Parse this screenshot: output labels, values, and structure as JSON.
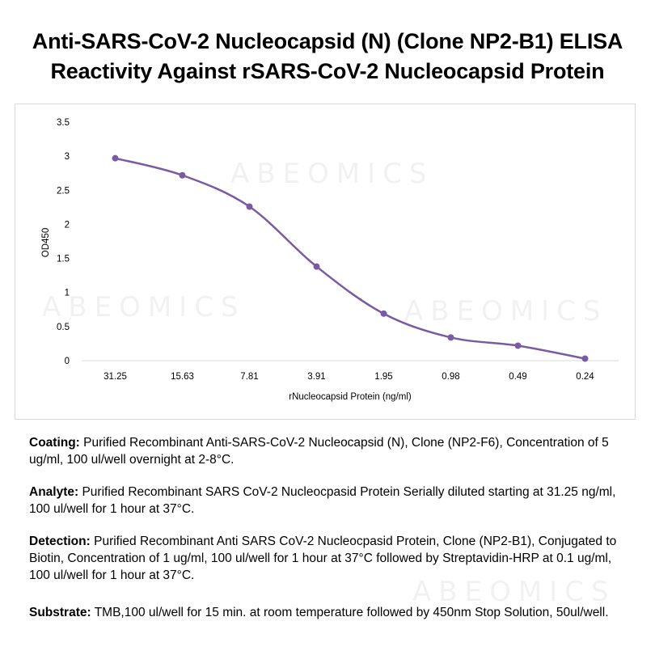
{
  "chart_data": {
    "type": "line",
    "title": "Anti-SARS-CoV-2 Nucleocapsid (N) (Clone NP2-B1) ELISA",
    "subtitle": "Reactivity Against rSARS-CoV-2 Nucleocapsid Protein",
    "xlabel": "rNucleocapsid Protein (ng/ml)",
    "ylabel": "OD450",
    "categories": [
      "31.25",
      "15.63",
      "7.81",
      "3.91",
      "1.95",
      "0.98",
      "0.49",
      "0.24"
    ],
    "series": [
      {
        "name": "OD450",
        "values": [
          2.97,
          2.72,
          2.26,
          1.38,
          0.69,
          0.34,
          0.22,
          0.03
        ]
      }
    ],
    "yticks": [
      "0",
      "0.5",
      "1",
      "1.5",
      "2",
      "2.5",
      "3",
      "3.5"
    ],
    "ylim": [
      0,
      3.5
    ],
    "grid": false,
    "line_color": "#7a5ba3"
  },
  "watermark": "ABEOMICS",
  "notes": [
    {
      "label": "Coating:",
      "text": "Purified Recombinant Anti-SARS-CoV-2 Nucleocapsid (N), Clone (NP2-F6), Concentration of 5 ug/ml, 100 ul/well overnight at 2-8°C."
    },
    {
      "label": "Analyte:",
      "text": "Purified Recombinant SARS CoV-2 Nucleocpasid Protein Serially diluted starting at 31.25 ng/ml, 100 ul/well for 1 hour at 37°C."
    },
    {
      "label": "Detection:",
      "text": "Purified Recombinant Anti SARS CoV-2 Nucleocpasid Protein, Clone (NP2-B1), Conjugated to Biotin, Concentration of 1 ug/ml, 100 ul/well for 1 hour at 37°C followed by Streptavidin-HRP at 0.1 ug/ml, 100 ul/well for 1 hour at 37°C."
    },
    {
      "label": "Substrate:",
      "text": "TMB,100 ul/well for 15 min. at room temperature followed by 450nm Stop Solution, 50ul/well."
    }
  ]
}
